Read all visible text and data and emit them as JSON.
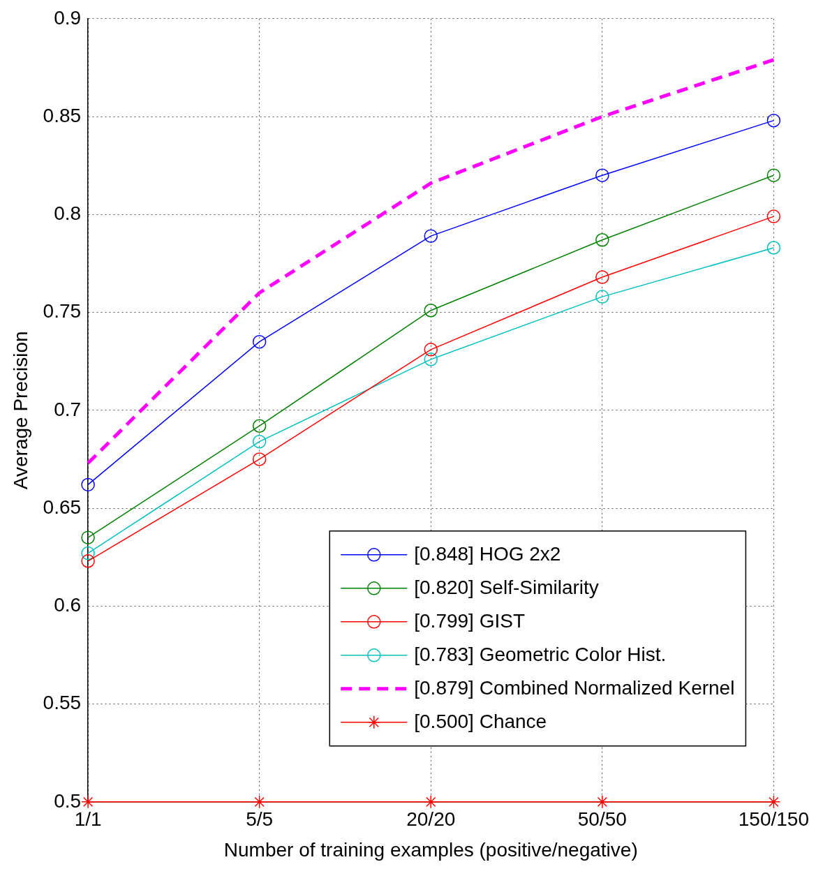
{
  "chart_data": {
    "type": "line",
    "xlabel": "Number of training examples (positive/negative)",
    "ylabel": "Average Precision",
    "categories": [
      "1/1",
      "5/5",
      "20/20",
      "50/50",
      "150/150"
    ],
    "ylim": [
      0.5,
      0.9
    ],
    "yticks": [
      0.5,
      0.55,
      0.6,
      0.65,
      0.7,
      0.75,
      0.8,
      0.85,
      0.9
    ],
    "grid": true,
    "legend": "bottom right",
    "series": [
      {
        "name": "[0.848] HOG 2x2",
        "color": "#0000ff",
        "marker": "circle",
        "line_style": "solid",
        "values": [
          0.662,
          0.735,
          0.789,
          0.82,
          0.848
        ]
      },
      {
        "name": "[0.820] Self-Similarity",
        "color": "#008000",
        "marker": "circle",
        "line_style": "solid",
        "values": [
          0.635,
          0.692,
          0.751,
          0.787,
          0.82
        ]
      },
      {
        "name": "[0.799] GIST",
        "color": "#ff0000",
        "marker": "circle",
        "line_style": "solid",
        "values": [
          0.623,
          0.675,
          0.731,
          0.768,
          0.799
        ]
      },
      {
        "name": "[0.783] Geometric Color Hist.",
        "color": "#00bfbf",
        "marker": "circle",
        "line_style": "solid",
        "values": [
          0.627,
          0.684,
          0.726,
          0.758,
          0.783
        ]
      },
      {
        "name": "[0.879] Combined Normalized Kernel",
        "color": "#ff00ff",
        "marker": "none",
        "line_style": "dashed",
        "values": [
          0.673,
          0.76,
          0.816,
          0.85,
          0.879
        ]
      },
      {
        "name": "[0.500] Chance",
        "color": "#ff0000",
        "marker": "cross",
        "line_style": "solid",
        "values": [
          0.5,
          0.5,
          0.5,
          0.5,
          0.5
        ]
      }
    ]
  }
}
